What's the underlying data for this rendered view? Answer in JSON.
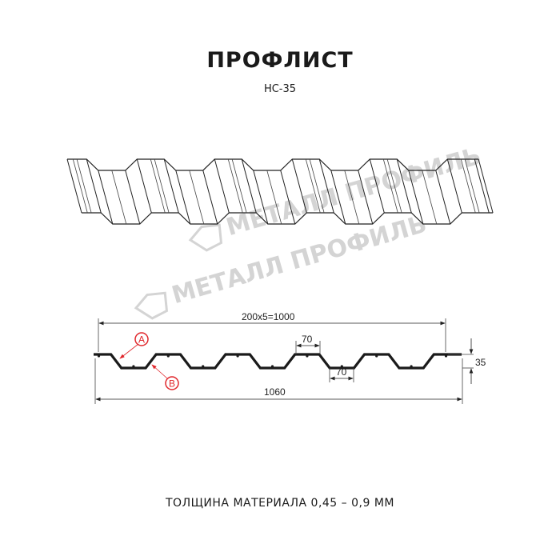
{
  "title": "ПРОФЛИСТ",
  "model": "НС-35",
  "watermark": "МЕТАЛЛ ПРОФИЛЬ",
  "dimensions": {
    "pitch": "200x5=1000",
    "total_width": "1060",
    "top_rib": "70",
    "bottom_rib": "70",
    "height": "35"
  },
  "callouts": {
    "a": "A",
    "b": "B"
  },
  "footer": "ТОЛЩИНА МАТЕРИАЛА 0,45 – 0,9 ММ",
  "colors": {
    "line": "#1a1a1a",
    "callout": "#e0262b",
    "watermark": "#d4d4d4"
  }
}
